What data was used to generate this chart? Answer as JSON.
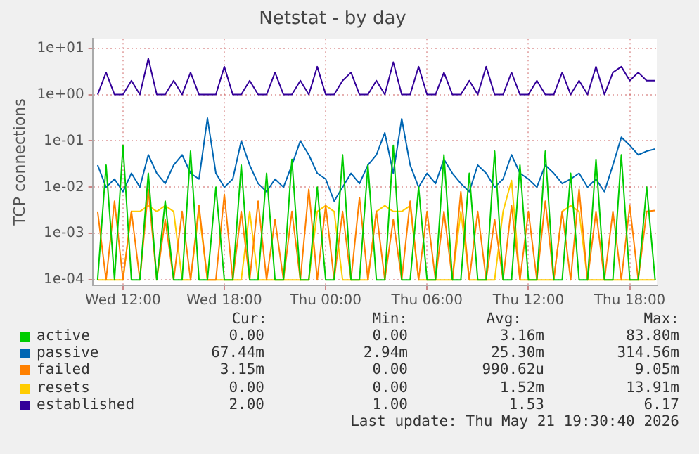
{
  "chart_data": {
    "type": "line",
    "title": "Netstat - by day",
    "ylabel": "TCP connections",
    "log": "y",
    "grid": true,
    "legend": "bottom",
    "x": [
      "2026-05-20T10:30",
      "2026-05-20T11:00",
      "2026-05-20T11:30",
      "2026-05-20T12:00",
      "2026-05-20T12:30",
      "2026-05-20T13:00",
      "2026-05-20T13:30",
      "2026-05-20T14:00",
      "2026-05-20T14:30",
      "2026-05-20T15:00",
      "2026-05-20T15:30",
      "2026-05-20T16:00",
      "2026-05-20T16:30",
      "2026-05-20T17:00",
      "2026-05-20T17:30",
      "2026-05-20T18:00",
      "2026-05-20T18:30",
      "2026-05-20T19:00",
      "2026-05-20T19:30",
      "2026-05-20T20:00",
      "2026-05-20T20:30",
      "2026-05-20T21:00",
      "2026-05-20T21:30",
      "2026-05-20T22:00",
      "2026-05-20T22:30",
      "2026-05-20T23:00",
      "2026-05-20T23:30",
      "2026-05-21T00:00",
      "2026-05-21T00:30",
      "2026-05-21T01:00",
      "2026-05-21T01:30",
      "2026-05-21T02:00",
      "2026-05-21T02:30",
      "2026-05-21T03:00",
      "2026-05-21T03:30",
      "2026-05-21T04:00",
      "2026-05-21T04:30",
      "2026-05-21T05:00",
      "2026-05-21T05:30",
      "2026-05-21T06:00",
      "2026-05-21T06:30",
      "2026-05-21T07:00",
      "2026-05-21T07:30",
      "2026-05-21T08:00",
      "2026-05-21T08:30",
      "2026-05-21T09:00",
      "2026-05-21T09:30",
      "2026-05-21T10:00",
      "2026-05-21T10:30",
      "2026-05-21T11:00",
      "2026-05-21T11:30",
      "2026-05-21T12:00",
      "2026-05-21T12:30",
      "2026-05-21T13:00",
      "2026-05-21T13:30",
      "2026-05-21T14:00",
      "2026-05-21T14:30",
      "2026-05-21T15:00",
      "2026-05-21T15:30",
      "2026-05-21T16:00",
      "2026-05-21T16:30",
      "2026-05-21T17:00",
      "2026-05-21T17:30",
      "2026-05-21T18:00",
      "2026-05-21T18:30",
      "2026-05-21T19:00",
      "2026-05-21T19:30"
    ],
    "xlim": [
      "2026-05-20T10:12",
      "2026-05-21T19:36"
    ],
    "xticks": [
      {
        "value": "2026-05-20T12:00",
        "label": "Wed 12:00"
      },
      {
        "value": "2026-05-20T18:00",
        "label": "Wed 18:00"
      },
      {
        "value": "2026-05-21T00:00",
        "label": "Thu 00:00"
      },
      {
        "value": "2026-05-21T06:00",
        "label": "Thu 06:00"
      },
      {
        "value": "2026-05-21T12:00",
        "label": "Thu 12:00"
      },
      {
        "value": "2026-05-21T18:00",
        "label": "Thu 18:00"
      }
    ],
    "ylim": [
      7.6e-05,
      16
    ],
    "yticks": [
      {
        "value": 0.0001,
        "label": "1e-04"
      },
      {
        "value": 0.001,
        "label": "1e-03"
      },
      {
        "value": 0.01,
        "label": "1e-02"
      },
      {
        "value": 0.1,
        "label": "1e-01"
      },
      {
        "value": 1,
        "label": "1e+00"
      },
      {
        "value": 10,
        "label": "1e+01"
      }
    ],
    "series": [
      {
        "name": "active",
        "color": "#00cc00",
        "values": [
          0.0001,
          0.03,
          0.0001,
          0.08,
          0.0001,
          0.0001,
          0.02,
          0.0001,
          0.005,
          0.0001,
          0.0001,
          0.06,
          0.0001,
          0.0001,
          0.01,
          0.0001,
          0.0001,
          0.03,
          0.0001,
          0.0001,
          0.02,
          0.0001,
          0.0001,
          0.04,
          0.0001,
          0.0001,
          0.01,
          0.0001,
          0.0001,
          0.05,
          0.0001,
          0.0001,
          0.03,
          0.0001,
          0.0001,
          0.08,
          0.0001,
          0.0001,
          0.01,
          0.0001,
          0.0001,
          0.05,
          0.0001,
          0.0001,
          0.02,
          0.0001,
          0.0001,
          0.06,
          0.0001,
          0.0001,
          0.03,
          0.0001,
          0.0001,
          0.06,
          0.0001,
          0.0001,
          0.02,
          0.0001,
          0.0001,
          0.04,
          0.0001,
          0.0001,
          0.05,
          0.0001,
          0.0001,
          0.01,
          0.0001
        ]
      },
      {
        "name": "passive",
        "color": "#0066b3",
        "values": [
          0.03,
          0.01,
          0.015,
          0.008,
          0.02,
          0.01,
          0.05,
          0.02,
          0.012,
          0.03,
          0.05,
          0.02,
          0.015,
          0.31,
          0.02,
          0.01,
          0.015,
          0.1,
          0.03,
          0.012,
          0.008,
          0.015,
          0.01,
          0.03,
          0.1,
          0.05,
          0.02,
          0.015,
          0.005,
          0.01,
          0.02,
          0.012,
          0.03,
          0.05,
          0.15,
          0.02,
          0.3,
          0.03,
          0.01,
          0.02,
          0.012,
          0.04,
          0.02,
          0.012,
          0.008,
          0.03,
          0.02,
          0.01,
          0.015,
          0.05,
          0.02,
          0.015,
          0.01,
          0.03,
          0.02,
          0.012,
          0.015,
          0.02,
          0.01,
          0.015,
          0.008,
          0.03,
          0.12,
          0.08,
          0.05,
          0.06,
          0.067
        ]
      },
      {
        "name": "failed",
        "color": "#ff8000",
        "values": [
          0.003,
          0.0001,
          0.005,
          0.0001,
          0.003,
          0.0001,
          0.009,
          0.0001,
          0.002,
          0.0001,
          0.003,
          0.0001,
          0.004,
          0.0001,
          0.0001,
          0.007,
          0.0001,
          0.003,
          0.0001,
          0.005,
          0.0001,
          0.002,
          0.0001,
          0.003,
          0.0001,
          0.009,
          0.0001,
          0.004,
          0.0001,
          0.003,
          0.0001,
          0.006,
          0.0001,
          0.003,
          0.0001,
          0.002,
          0.0001,
          0.005,
          0.0001,
          0.003,
          0.0001,
          0.003,
          0.0001,
          0.008,
          0.0001,
          0.003,
          0.0001,
          0.002,
          0.0001,
          0.004,
          0.0001,
          0.003,
          0.0001,
          0.005,
          0.0001,
          0.003,
          0.0001,
          0.009,
          0.0001,
          0.003,
          0.0001,
          0.003,
          0.0001,
          0.004,
          0.0001,
          0.003,
          0.00315
        ]
      },
      {
        "name": "resets",
        "color": "#ffcc00",
        "values": [
          0.0001,
          0.0001,
          0.0001,
          0.0001,
          0.003,
          0.003,
          0.004,
          0.003,
          0.004,
          0.003,
          0.0001,
          0.0001,
          0.003,
          0.0001,
          0.0001,
          0.0001,
          0.0001,
          0.0001,
          0.003,
          0.0001,
          0.0001,
          0.0001,
          0.0001,
          0.0001,
          0.0001,
          0.0001,
          0.003,
          0.004,
          0.003,
          0.0001,
          0.0001,
          0.0001,
          0.0001,
          0.003,
          0.004,
          0.003,
          0.003,
          0.004,
          0.0001,
          0.0001,
          0.0001,
          0.0001,
          0.0001,
          0.003,
          0.0001,
          0.0001,
          0.0001,
          0.0001,
          0.003,
          0.014,
          0.0001,
          0.0001,
          0.0001,
          0.0001,
          0.0001,
          0.003,
          0.004,
          0.003,
          0.0001,
          0.0001,
          0.0001,
          0.0001,
          0.0001,
          0.0001,
          0.0001,
          0.0001,
          0.0001
        ]
      },
      {
        "name": "established",
        "color": "#330099",
        "values": [
          1,
          3,
          1,
          1,
          2,
          1,
          6,
          1,
          1,
          2,
          1,
          3,
          1,
          1,
          1,
          4,
          1,
          1,
          2,
          1,
          1,
          3,
          1,
          1,
          2,
          1,
          4,
          1,
          1,
          2,
          3,
          1,
          1,
          2,
          1,
          5,
          1,
          1,
          4,
          1,
          1,
          3,
          1,
          1,
          2,
          1,
          4,
          1,
          1,
          3,
          1,
          1,
          2,
          1,
          1,
          3,
          1,
          2,
          1,
          4,
          1,
          3,
          4,
          2,
          3,
          2,
          2
        ]
      }
    ],
    "annotations": [
      "Cur:",
      "Min:",
      "Avg:",
      "Max:",
      "0.00",
      "0.00",
      "3.16m",
      "83.80m",
      "67.44m",
      "2.94m",
      "25.30m",
      "314.56m",
      "3.15m",
      "0.00",
      "990.62u",
      "9.05m",
      "0.00",
      "0.00",
      "1.52m",
      "13.91m",
      "2.00",
      "1.00",
      "1.53",
      "6.17",
      "Last update: Thu May 21 19:30:40 2026"
    ]
  }
}
